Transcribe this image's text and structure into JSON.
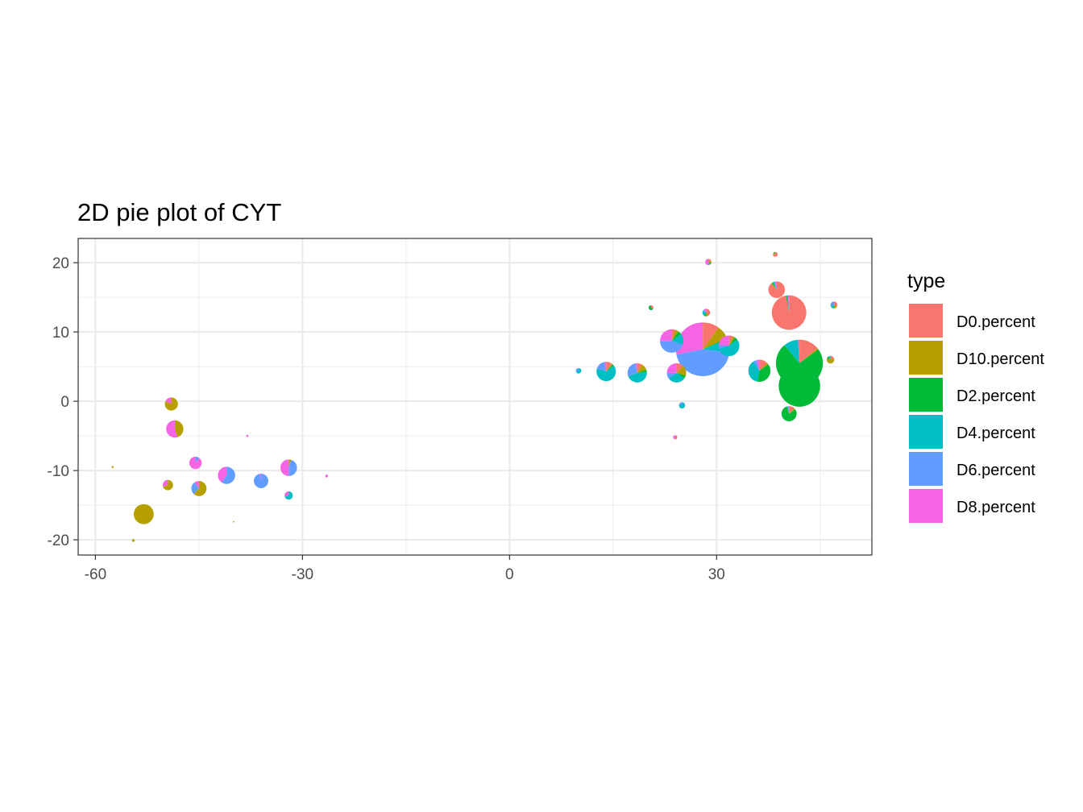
{
  "chart_data": {
    "type": "scatter",
    "subtype": "scatter-pie",
    "title": "2D pie plot of CYT",
    "xlabel": "",
    "ylabel": "",
    "xlim": [
      -62.5,
      52.5
    ],
    "ylim": [
      -22.2,
      23.5
    ],
    "x_ticks": [
      -60,
      -30,
      0,
      30
    ],
    "x_tick_labels": [
      "-60",
      "-30",
      "0",
      "30"
    ],
    "y_ticks": [
      -20,
      -10,
      0,
      10,
      20
    ],
    "y_tick_labels": [
      "-20",
      "-10",
      "0",
      "10",
      "20"
    ],
    "grid": true,
    "legend": {
      "title": "type",
      "position": "right",
      "entries": [
        "D0.percent",
        "D10.percent",
        "D2.percent",
        "D4.percent",
        "D6.percent",
        "D8.percent"
      ]
    },
    "colors": {
      "D0.percent": "#F8766D",
      "D10.percent": "#B79F00",
      "D2.percent": "#00BA38",
      "D4.percent": "#00BFC4",
      "D6.percent": "#619CFF",
      "D8.percent": "#F564E3"
    },
    "pies": [
      {
        "x": 28.0,
        "y": 7.5,
        "r": 3.9,
        "slices": [
          0.1,
          0.08,
          0.01,
          0.08,
          0.45,
          0.28
        ]
      },
      {
        "x": 42.0,
        "y": 5.5,
        "r": 3.4,
        "slices": [
          0.14,
          0.01,
          0.74,
          0.1,
          0.0,
          0.01
        ]
      },
      {
        "x": 42.0,
        "y": 2.2,
        "r": 3.0,
        "slices": [
          0.0,
          0.0,
          1.0,
          0.0,
          0.0,
          0.0
        ]
      },
      {
        "x": 40.5,
        "y": 12.8,
        "r": 2.5,
        "slices": [
          0.97,
          0.0,
          0.01,
          0.01,
          0.0,
          0.01
        ]
      },
      {
        "x": 23.5,
        "y": 8.7,
        "r": 1.7,
        "slices": [
          0.05,
          0.05,
          0.05,
          0.15,
          0.45,
          0.25
        ]
      },
      {
        "x": 31.8,
        "y": 8.0,
        "r": 1.5,
        "slices": [
          0.06,
          0.04,
          0.05,
          0.55,
          0.06,
          0.24
        ]
      },
      {
        "x": 36.2,
        "y": 4.4,
        "r": 1.6,
        "slices": [
          0.12,
          0.03,
          0.38,
          0.38,
          0.05,
          0.04
        ]
      },
      {
        "x": 14.0,
        "y": 4.3,
        "r": 1.4,
        "slices": [
          0.1,
          0.02,
          0.03,
          0.65,
          0.17,
          0.03
        ]
      },
      {
        "x": 18.5,
        "y": 4.1,
        "r": 1.4,
        "slices": [
          0.08,
          0.12,
          0.04,
          0.45,
          0.28,
          0.03
        ]
      },
      {
        "x": 24.2,
        "y": 4.1,
        "r": 1.4,
        "slices": [
          0.12,
          0.18,
          0.05,
          0.3,
          0.1,
          0.25
        ]
      },
      {
        "x": 38.7,
        "y": 16.1,
        "r": 1.2,
        "slices": [
          0.88,
          0.02,
          0.03,
          0.02,
          0.02,
          0.03
        ]
      },
      {
        "x": 40.5,
        "y": -1.8,
        "r": 1.1,
        "slices": [
          0.12,
          0.03,
          0.8,
          0.03,
          0.01,
          0.01
        ]
      },
      {
        "x": 46.5,
        "y": 6.0,
        "r": 0.55,
        "slices": [
          0.2,
          0.6,
          0.1,
          0.1,
          0.0,
          0.0
        ]
      },
      {
        "x": 47.0,
        "y": 13.9,
        "r": 0.5,
        "slices": [
          0.3,
          0.2,
          0.0,
          0.2,
          0.3,
          0.0
        ]
      },
      {
        "x": 28.5,
        "y": 12.8,
        "r": 0.55,
        "slices": [
          0.4,
          0.1,
          0.1,
          0.2,
          0.1,
          0.1
        ]
      },
      {
        "x": 28.8,
        "y": 20.1,
        "r": 0.45,
        "slices": [
          0.2,
          0.1,
          0.1,
          0.0,
          0.1,
          0.5
        ]
      },
      {
        "x": 38.5,
        "y": 21.2,
        "r": 0.35,
        "slices": [
          0.8,
          0.1,
          0.1,
          0.0,
          0.0,
          0.0
        ]
      },
      {
        "x": 20.5,
        "y": 13.5,
        "r": 0.35,
        "slices": [
          0.3,
          0.0,
          0.7,
          0.0,
          0.0,
          0.0
        ]
      },
      {
        "x": 10.0,
        "y": 4.4,
        "r": 0.4,
        "slices": [
          0.0,
          0.0,
          0.0,
          0.7,
          0.3,
          0.0
        ]
      },
      {
        "x": 25.0,
        "y": -0.6,
        "r": 0.45,
        "slices": [
          0.0,
          0.0,
          0.0,
          0.8,
          0.2,
          0.0
        ]
      },
      {
        "x": 24.0,
        "y": -5.2,
        "r": 0.3,
        "slices": [
          0.5,
          0.0,
          0.0,
          0.0,
          0.0,
          0.5
        ]
      },
      {
        "x": -53.0,
        "y": -16.3,
        "r": 1.45,
        "slices": [
          0.0,
          1.0,
          0.0,
          0.0,
          0.0,
          0.0
        ]
      },
      {
        "x": -48.5,
        "y": -4.0,
        "r": 1.25,
        "slices": [
          0.0,
          0.45,
          0.0,
          0.0,
          0.0,
          0.55
        ]
      },
      {
        "x": -49.0,
        "y": -0.4,
        "r": 0.95,
        "slices": [
          0.0,
          0.82,
          0.0,
          0.0,
          0.0,
          0.18
        ]
      },
      {
        "x": -45.0,
        "y": -12.6,
        "r": 1.1,
        "slices": [
          0.0,
          0.62,
          0.0,
          0.0,
          0.28,
          0.1
        ]
      },
      {
        "x": -41.0,
        "y": -10.7,
        "r": 1.25,
        "slices": [
          0.0,
          0.0,
          0.0,
          0.0,
          0.6,
          0.4
        ]
      },
      {
        "x": -32.0,
        "y": -9.6,
        "r": 1.2,
        "slices": [
          0.0,
          0.05,
          0.0,
          0.0,
          0.45,
          0.5
        ]
      },
      {
        "x": -36.0,
        "y": -11.5,
        "r": 1.05,
        "slices": [
          0.0,
          0.0,
          0.0,
          0.0,
          0.97,
          0.03
        ]
      },
      {
        "x": -45.5,
        "y": -8.9,
        "r": 0.9,
        "slices": [
          0.0,
          0.0,
          0.0,
          0.0,
          0.1,
          0.9
        ]
      },
      {
        "x": -49.5,
        "y": -12.1,
        "r": 0.75,
        "slices": [
          0.0,
          0.7,
          0.0,
          0.0,
          0.0,
          0.3
        ]
      },
      {
        "x": -32.0,
        "y": -13.6,
        "r": 0.6,
        "slices": [
          0.0,
          0.0,
          0.0,
          0.7,
          0.0,
          0.3
        ]
      },
      {
        "x": -57.5,
        "y": -9.5,
        "r": 0.15,
        "slices": [
          0.0,
          1.0,
          0.0,
          0.0,
          0.0,
          0.0
        ]
      },
      {
        "x": -54.5,
        "y": -20.1,
        "r": 0.2,
        "slices": [
          0.0,
          1.0,
          0.0,
          0.0,
          0.0,
          0.0
        ]
      },
      {
        "x": -38.0,
        "y": -5.0,
        "r": 0.15,
        "slices": [
          0.0,
          0.0,
          0.0,
          0.0,
          0.0,
          1.0
        ]
      },
      {
        "x": -26.5,
        "y": -10.8,
        "r": 0.2,
        "slices": [
          0.0,
          0.0,
          0.0,
          0.0,
          0.0,
          1.0
        ]
      },
      {
        "x": -40.0,
        "y": -17.4,
        "r": 0.1,
        "slices": [
          0.0,
          1.0,
          0.0,
          0.0,
          0.0,
          0.0
        ]
      }
    ]
  }
}
